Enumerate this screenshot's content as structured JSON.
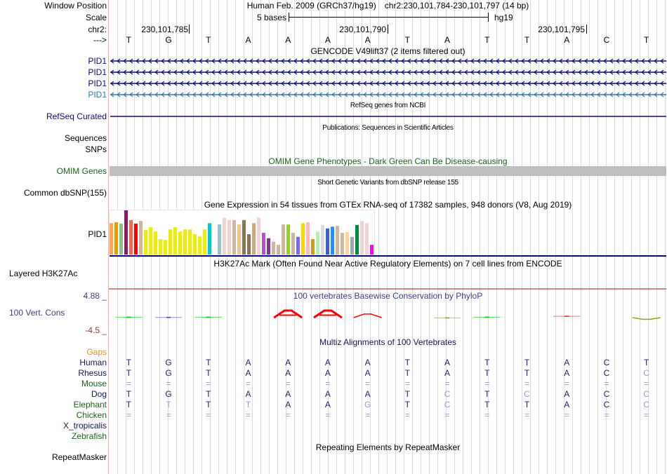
{
  "labels": {
    "window_position": "Window Position",
    "scale": "Scale",
    "chrom": "chr2:",
    "strand": "--->"
  },
  "header": {
    "assembly": "Human Feb. 2009 (GRCh37/hg19)",
    "position": "chr2:230,101,784-230,101,797 (14 bp)"
  },
  "scale": {
    "label": "5 bases",
    "assembly": "hg19"
  },
  "ruler": {
    "ticks": [
      "230,101,785",
      "230,101,790",
      "230,101,795"
    ]
  },
  "sequence": {
    "bases": [
      "T",
      "G",
      "T",
      "A",
      "A",
      "A",
      "A",
      "T",
      "A",
      "T",
      "T",
      "A",
      "C",
      "T"
    ]
  },
  "tracks": {
    "gencode": {
      "title": "GENCODE V49lift37 (2 items filtered out)",
      "strand": "minus",
      "items": [
        {
          "label": "PID1",
          "color": "#0c0c78"
        },
        {
          "label": "PID1",
          "color": "#0c0c78"
        },
        {
          "label": "PID1",
          "color": "#0c0c78"
        },
        {
          "label": "PID1",
          "color": "#2b7bb0"
        }
      ]
    },
    "refseq": {
      "title": "RefSeq genes from NCBI",
      "label": "RefSeq Curated",
      "color": "#0c0c78"
    },
    "publications": {
      "title": "Publications: Sequences in Scientific Articles",
      "labels": [
        "Sequences",
        "SNPs"
      ]
    },
    "omim": {
      "title": "OMIM Gene Phenotypes - Dark Green Can Be Disease-causing",
      "label": "OMIM Genes",
      "color": "#1a641a",
      "bar_color": "#bebebe"
    },
    "dbsnp": {
      "title": "Short Genetic Variants from dbSNP release 155",
      "label": "Common dbSNP(155)"
    },
    "gtex": {
      "title": "Gene Expression in 54 tissues from GTEx RNA-seq of 17382 samples, 948 donors (V8, Aug 2019)",
      "label": "PID1",
      "separator_color": "#0c0c78",
      "relative_expression": [
        71,
        73,
        70,
        100,
        78,
        70,
        76,
        56,
        62,
        52,
        35,
        33,
        57,
        62,
        52,
        57,
        57,
        46,
        41,
        57,
        71,
        0,
        68,
        83,
        78,
        78,
        68,
        78,
        46,
        71,
        84,
        49,
        37,
        29,
        22,
        68,
        68,
        49,
        40,
        71,
        73,
        35,
        52,
        67,
        59,
        63,
        65,
        49,
        51,
        40,
        67,
        76,
        71,
        22
      ],
      "colors": [
        "#FFA54F",
        "#EE9A00",
        "#8FBC8F",
        "#8B1C62",
        "#EE6A50",
        "#FF0000",
        "#CDB79E",
        "#EEEE00",
        "#EEEE00",
        "#EEEE00",
        "#EEEE00",
        "#EEEE00",
        "#EEEE00",
        "#EEEE00",
        "#EEEE00",
        "#EEEE00",
        "#EEEE00",
        "#EEEE00",
        "#EEEE00",
        "#EEEE00",
        "#00CDCD",
        "#EE82EE",
        "#9AC0CD",
        "#EED5D2",
        "#EED5D2",
        "#CDB79E",
        "#EEC591",
        "#8B7355",
        "#8B7355",
        "#CDAA7D",
        "#EED5D2",
        "#B452CD",
        "#7A378B",
        "#CDB79E",
        "#CDB79E",
        "#CDB79E",
        "#9ACD32",
        "#CDB79E",
        "#7A67EE",
        "#FFD700",
        "#FFB6C1",
        "#CD9B1D",
        "#B4EEB4",
        "#D9D9D9",
        "#3A5FCD",
        "#1E90FF",
        "#CDB79E",
        "#CDB79E",
        "#FFD39B",
        "#A6A6A6",
        "#008B45",
        "#EED5D2",
        "#EED5D2",
        "#FF00FF"
      ]
    },
    "h3k27ac": {
      "title": "H3K27Ac Mark (Often Found Near Active Regulatory Elements) on 7 cell lines from ENCODE",
      "label": "Layered H3K27Ac",
      "line_color": "#c03a3a"
    },
    "cons": {
      "title": "100 vertebrates Basewise Conservation by PhyloP",
      "label": "100 Vert. Cons",
      "color": "#3c3c8c",
      "max_label": "4.88 _",
      "min_label": "-4.5 _",
      "min_color": "#8c3c3c",
      "range": [
        -4.5,
        4.88
      ],
      "scores": [
        0.1,
        0.05,
        0.1,
        0,
        1.6,
        1.6,
        0.8,
        0,
        -0.1,
        0.1,
        0,
        0.3,
        0,
        -0.6
      ],
      "colors": [
        "#00c800",
        "#4646c8",
        "#00c800",
        null,
        "#ff0000",
        "#ff0000",
        "#ff0000",
        null,
        "#a0a000",
        "#00c800",
        null,
        "#ff2020",
        null,
        "#a0a000"
      ]
    },
    "multiz": {
      "title": "Multiz Alignments of 100 Vertebrates",
      "color": "#14145a",
      "gaps_label": "Gaps",
      "gaps_color": "#e6901e",
      "base_color": "#1e1e6e",
      "dim_color": "#9a9ac8",
      "species": [
        {
          "name": "Human",
          "color": "#14145a",
          "bases": "TGTAAAATATTACT",
          "dim": "00000000000000"
        },
        {
          "name": "Rhesus",
          "color": "#14145a",
          "bases": "TGTAAAATATTACC",
          "dim": "00000000000001"
        },
        {
          "name": "Mouse",
          "color": "#1a641a",
          "bases": "==============",
          "dim": "11111111111111"
        },
        {
          "name": "Dog",
          "color": "#14145a",
          "bases": "TGTAAAATCTCACC",
          "dim": "00000000101001"
        },
        {
          "name": "Elephant",
          "color": "#1a641a",
          "bases": "TTTTAAGTCTTACC",
          "dim": "01010010100001"
        },
        {
          "name": "Chicken",
          "color": "#1a641a",
          "bases": "==============",
          "dim": "11111111111111"
        },
        {
          "name": "X_tropicalis",
          "color": "#14145a",
          "bases": "",
          "dim": ""
        },
        {
          "name": "Zebrafish",
          "color": "#1a641a",
          "bases": "",
          "dim": ""
        }
      ]
    },
    "rmsk": {
      "title": "Repeating Elements by RepeatMasker",
      "label": "RepeatMasker"
    }
  }
}
